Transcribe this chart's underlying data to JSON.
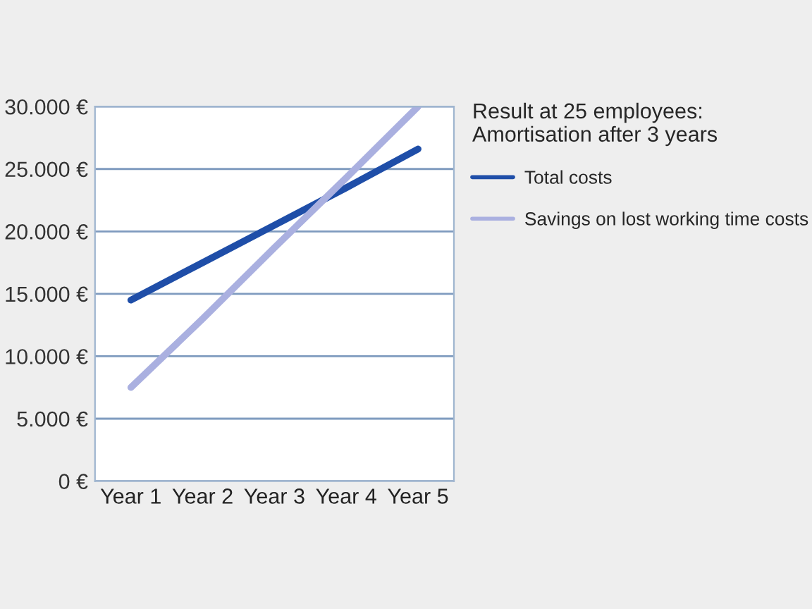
{
  "chart_data": {
    "type": "line",
    "legend_title": "Result at 25 employees:\nAmortisation after 3 years",
    "categories": [
      "Year 1",
      "Year 2",
      "Year 3",
      "Year 4",
      "Year 5"
    ],
    "series": [
      {
        "name": "Total costs",
        "color": "#1f4ea8",
        "values": [
          14500,
          17500,
          20500,
          23500,
          26600
        ]
      },
      {
        "name": "Savings on lost working time costs",
        "color": "#aab0e0",
        "values": [
          7500,
          13000,
          18700,
          24300,
          30000
        ]
      }
    ],
    "ylim": [
      0,
      30000
    ],
    "yticks": [
      {
        "value": 0,
        "label": "0 €"
      },
      {
        "value": 5000,
        "label": "5.000 €"
      },
      {
        "value": 10000,
        "label": "10.000 €"
      },
      {
        "value": 15000,
        "label": "15.000 €"
      },
      {
        "value": 20000,
        "label": "20.000 €"
      },
      {
        "value": 25000,
        "label": "25.000 €"
      },
      {
        "value": 30000,
        "label": "30.000 €"
      }
    ],
    "grid": "y",
    "legend": "right",
    "marker": "none",
    "line_style": "solid"
  }
}
